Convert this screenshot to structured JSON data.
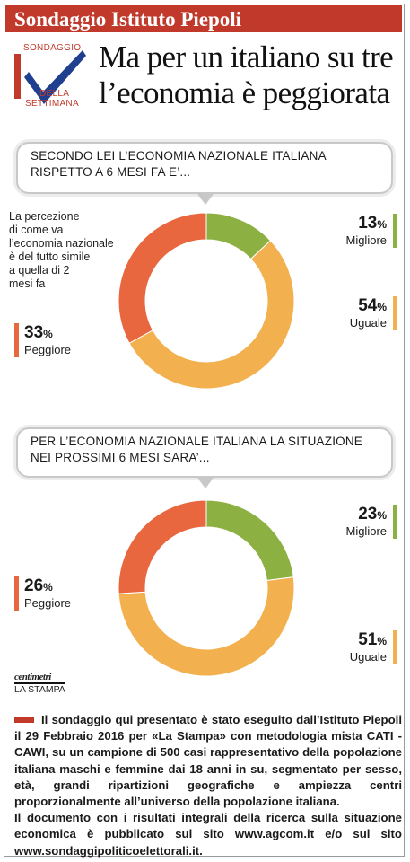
{
  "header": {
    "source": "Sondaggio Istituto Piepoli"
  },
  "logo": {
    "line1": "SONDAGGIO",
    "line2": "DELLA",
    "line3": "SETTIMANA"
  },
  "headline": {
    "line1": "Ma per un italiano su tre",
    "line2": "l’economia è peggiorata"
  },
  "colors": {
    "green": "#8db043",
    "orange": "#f3b04f",
    "red": "#e8673e",
    "brand": "#c0392b"
  },
  "chart_data": [
    {
      "type": "pie",
      "title": "SECONDO LEI L’ECONOMIA NAZIONALE ITALIANA RISPETTO A 6 MESI FA E’...",
      "title_line1": "SECONDO LEI L’ECONOMIA NAZIONALE ITALIANA",
      "title_line2": "RISPETTO A 6 MESI FA E’...",
      "donut": true,
      "categories": [
        "Migliore",
        "Uguale",
        "Peggiore"
      ],
      "values": [
        13,
        54,
        33
      ],
      "labels": [
        "13",
        "54",
        "33"
      ],
      "unit": "%",
      "colors": [
        "#8db043",
        "#f3b04f",
        "#e8673e"
      ],
      "annotation": "La percezione di come va l’economia nazionale è del tutto simile a quella di 2 mesi fa"
    },
    {
      "type": "pie",
      "title": "PER L’ECONOMIA NAZIONALE ITALIANA LA SITUAZIONE NEI PROSSIMI 6 MESI SARA’...",
      "title_line1": "PER L’ECONOMIA NAZIONALE ITALIANA LA  SITUAZIONE",
      "title_line2": "NEI PROSSIMI 6 MESI SARA’...",
      "donut": true,
      "categories": [
        "Migliore",
        "Uguale",
        "Peggiore"
      ],
      "values": [
        23,
        51,
        26
      ],
      "labels": [
        "23",
        "51",
        "26"
      ],
      "unit": "%",
      "colors": [
        "#8db043",
        "#f3b04f",
        "#e8673e"
      ]
    }
  ],
  "note_lines": [
    "La percezione",
    "di come va",
    "l’economia nazionale",
    "è del tutto simile",
    "a quella di 2",
    "mesi fa"
  ],
  "brand": {
    "mark": "centimetri",
    "name": "LA STAMPA"
  },
  "footer": {
    "p1": "Il sondaggio qui presentato è stato eseguito dall’Istituto Piepoli il 29 Febbraio 2016 per «La Stampa» con metodologia mista CATI - CAWI, su un campione di 500 casi rappresentativo della popolazione italiana maschi e femmine dai 18 anni in su, segmentato per sesso, età, grandi ripartizioni geografiche e ampiezza centri proporzionalmente all’universo della popolazione italiana.",
    "p2": "Il documento con i risultati integrali della ricerca sulla situazione economica è pubblicato sul sito www.agcom.it e/o sul sito www.sondaggipoliticoelettorali.it."
  }
}
